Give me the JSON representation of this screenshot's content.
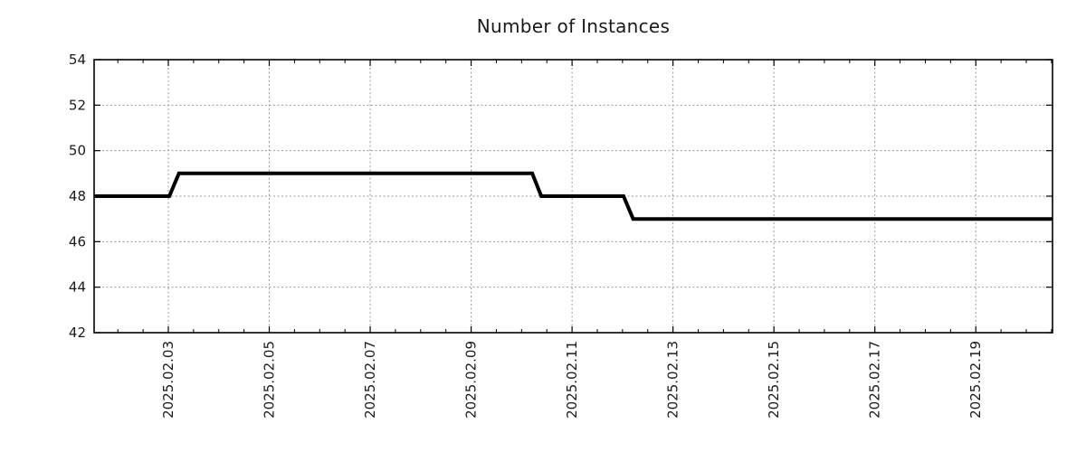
{
  "window": {
    "background": "#ffffff"
  },
  "chart_data": {
    "type": "line",
    "line_style": "step",
    "title": "Number of Instances",
    "legend": "none",
    "x_axis": {
      "kind": "date",
      "unit": "day of February 2025 (decimal)",
      "range_days": [
        1.53,
        20.52
      ],
      "minor_tick_step_days": 0.5,
      "tick_label_rotation_deg": 90,
      "major_ticks": [
        {
          "day": 3,
          "label": "2025.02.03"
        },
        {
          "day": 5,
          "label": "2025.02.05"
        },
        {
          "day": 7,
          "label": "2025.02.07"
        },
        {
          "day": 9,
          "label": "2025.02.09"
        },
        {
          "day": 11,
          "label": "2025.02.11"
        },
        {
          "day": 13,
          "label": "2025.02.13"
        },
        {
          "day": 15,
          "label": "2025.02.15"
        },
        {
          "day": 17,
          "label": "2025.02.17"
        },
        {
          "day": 19,
          "label": "2025.02.19"
        }
      ]
    },
    "y_axis": {
      "range": [
        42,
        54
      ],
      "ticks": [
        42,
        44,
        46,
        48,
        50,
        52,
        54
      ]
    },
    "grid": {
      "visible": true,
      "style": "dotted",
      "color": "#9a9a9a"
    },
    "series": [
      {
        "name": "instances",
        "color": "#000000",
        "line_width": 4,
        "points_day_value": [
          [
            1.53,
            48
          ],
          [
            3.02,
            48
          ],
          [
            3.21,
            49
          ],
          [
            10.21,
            49
          ],
          [
            10.39,
            48
          ],
          [
            12.02,
            48
          ],
          [
            12.21,
            47
          ],
          [
            20.52,
            47
          ]
        ]
      }
    ],
    "segments_readout": [
      {
        "from": "2025-02-01 ~12:00",
        "to": "2025-02-03 ~00:30",
        "value": 48
      },
      {
        "from": "2025-02-03 ~05:00",
        "to": "2025-02-10 ~05:00",
        "value": 49
      },
      {
        "from": "2025-02-10 ~09:00",
        "to": "2025-02-12 ~00:30",
        "value": 48
      },
      {
        "from": "2025-02-12 ~05:00",
        "to": "2025-02-20 ~12:30",
        "value": 47
      }
    ],
    "colors": {
      "axis": "#000000",
      "text": "#1a1a1a"
    }
  }
}
